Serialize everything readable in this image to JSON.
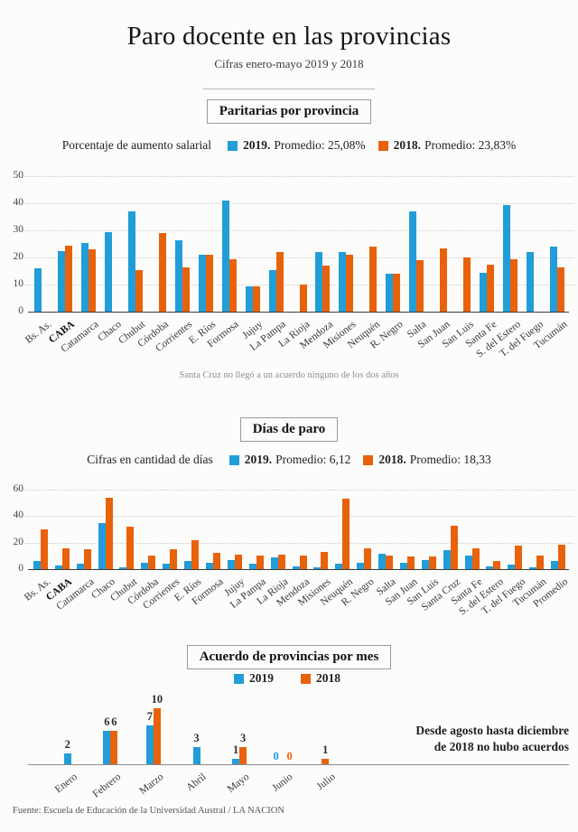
{
  "page": {
    "title": "Paro docente en las provincias",
    "subtitle": "Cifras enero-mayo 2019 y 2018",
    "source": "Fuente: Escuela de Educación de la Universidad Austral / LA NACION"
  },
  "colors": {
    "accent_2019": "#219dd8",
    "accent_2018": "#e8620c"
  },
  "chart_data": [
    {
      "type": "bar",
      "section_title": "Paritarias por provincia",
      "legend_label": "Porcentaje de aumento salarial",
      "series_meta": [
        {
          "label": "2019.",
          "detail": "Promedio: 25,08%",
          "color": "#219dd8"
        },
        {
          "label": "2018.",
          "detail": "Promedio: 23,83%",
          "color": "#e8620c"
        }
      ],
      "categories": [
        "Bs. As.",
        "CABA",
        "Catamarca",
        "Chaco",
        "Chubut",
        "Córdoba",
        "Corrientes",
        "E. Ríos",
        "Formosa",
        "Jujuy",
        "La Pampa",
        "La Rioja",
        "Mendoza",
        "Misiones",
        "Neuquén",
        "R. Negro",
        "Salta",
        "San Juan",
        "San Luis",
        "Santa Fe",
        "S. del Estero",
        "T. del Fuego",
        "Tucumán"
      ],
      "bold_category": "CABA",
      "series": [
        {
          "name": "2019",
          "values": [
            16,
            22.5,
            25.5,
            29.5,
            37,
            null,
            26.5,
            21,
            41,
            9.5,
            15.5,
            null,
            22,
            22,
            null,
            14,
            37,
            null,
            null,
            14.5,
            39.5,
            22,
            24
          ]
        },
        {
          "name": "2018",
          "values": [
            null,
            24.5,
            23,
            null,
            15.5,
            29,
            16.5,
            21,
            19.5,
            9.5,
            22,
            10,
            17,
            21,
            24,
            14,
            19,
            23.5,
            20,
            17.5,
            19.5,
            null,
            16.5
          ]
        }
      ],
      "ylim": [
        0,
        50
      ],
      "yticks": [
        0,
        10,
        20,
        30,
        40,
        50
      ],
      "grid": "dotted",
      "legend_position": "top",
      "note": "Santa Cruz no llegó a un  acuerdo ninguno de los dos años"
    },
    {
      "type": "bar",
      "section_title": "Días de paro",
      "legend_label": "Cifras en cantidad de días",
      "series_meta": [
        {
          "label": "2019.",
          "detail": "Promedio: 6,12",
          "color": "#219dd8"
        },
        {
          "label": "2018.",
          "detail": "Promedio: 18,33",
          "color": "#e8620c"
        }
      ],
      "categories": [
        "Bs. As.",
        "CABA",
        "Catamarca",
        "Chaco",
        "Chubut",
        "Córdoba",
        "Corrientes",
        "E. Ríos",
        "Formosa",
        "Jujuy",
        "La Pampa",
        "La Rioja",
        "Mendoza",
        "Misiones",
        "Neuquén",
        "R. Negro",
        "Salta",
        "San Juan",
        "San Luis",
        "Santa Cruz",
        "Santa Fe",
        "S. del Estero",
        "T. del Fuego",
        "Tucumán",
        "Promedio"
      ],
      "bold_category": "CABA",
      "series": [
        {
          "name": "2019",
          "values": [
            6,
            2.5,
            4,
            35,
            1.5,
            4.5,
            4,
            6,
            4.5,
            6.5,
            4,
            9,
            2,
            1.5,
            4,
            5,
            11.5,
            5,
            7,
            14,
            10.5,
            2,
            3.5,
            1.5,
            6.12
          ]
        },
        {
          "name": "2018",
          "values": [
            30,
            16,
            15,
            54,
            32,
            10,
            15,
            21.5,
            12,
            11,
            10,
            11,
            10.5,
            13,
            53,
            16,
            10,
            9.5,
            9.5,
            33,
            15.5,
            6,
            18,
            10,
            18.33
          ]
        }
      ],
      "ylim": [
        0,
        60
      ],
      "yticks": [
        0,
        20,
        40,
        60
      ],
      "grid": "dotted",
      "legend_position": "top"
    },
    {
      "type": "bar",
      "section_title": "Acuerdo de provincias por mes",
      "legend_label": "",
      "series_meta": [
        {
          "label": "2019",
          "detail": "",
          "color": "#219dd8"
        },
        {
          "label": "2018",
          "detail": "",
          "color": "#e8620c"
        }
      ],
      "categories": [
        "Enero",
        "Febrero",
        "Marzo",
        "Abril",
        "Mayo",
        "Junio",
        "Julio"
      ],
      "series": [
        {
          "name": "2019",
          "values": [
            2,
            6,
            7,
            3,
            1,
            0,
            null
          ]
        },
        {
          "name": "2018",
          "values": [
            null,
            6,
            10,
            null,
            3,
            0,
            1
          ]
        }
      ],
      "data_labels": true,
      "grid": "none",
      "legend_position": "top",
      "note_lines": [
        "Desde agosto hasta diciembre",
        "de 2018 no hubo acuerdos"
      ]
    }
  ]
}
